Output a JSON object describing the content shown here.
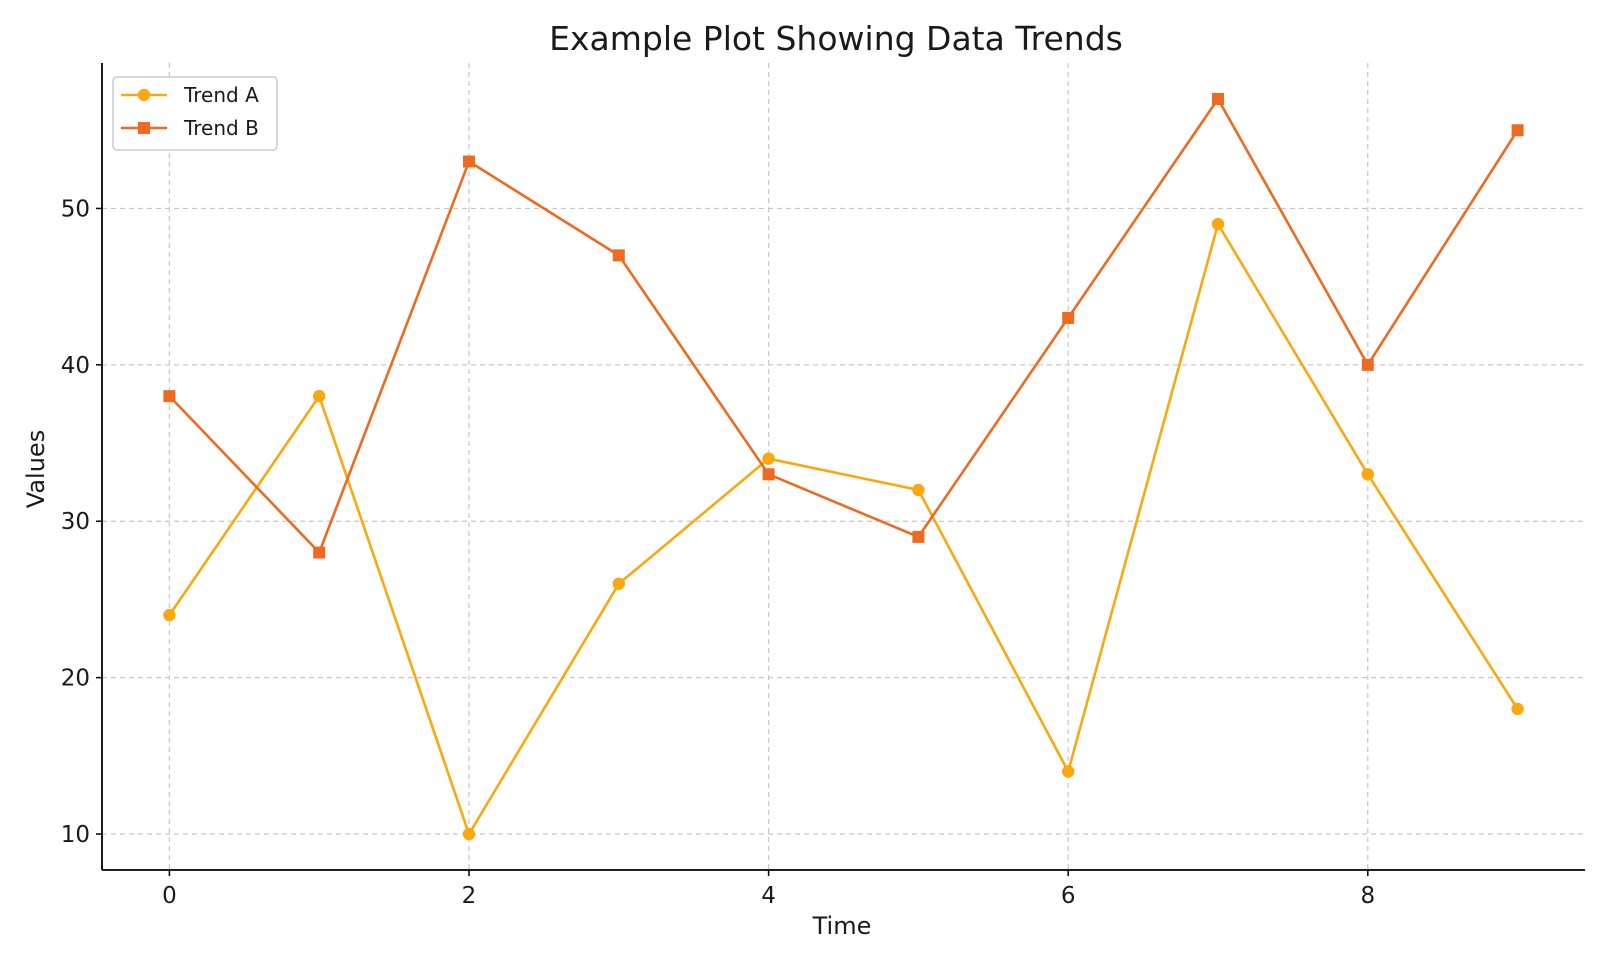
{
  "chart_data": {
    "type": "line",
    "title": "Example Plot Showing Data Trends",
    "xlabel": "Time",
    "ylabel": "Values",
    "x": [
      0,
      1,
      2,
      3,
      4,
      5,
      6,
      7,
      8,
      9
    ],
    "xlim": [
      -0.45,
      9.45
    ],
    "ylim": [
      7.7,
      59.3
    ],
    "xticks": [
      0,
      2,
      4,
      6,
      8
    ],
    "yticks": [
      10,
      20,
      30,
      40,
      50
    ],
    "grid": true,
    "legend_position": "top-left",
    "series": [
      {
        "name": "Trend A",
        "color": "#F9A810",
        "marker": "circle",
        "values": [
          24,
          38,
          10,
          26,
          34,
          32,
          14,
          49,
          33,
          18
        ]
      },
      {
        "name": "Trend B",
        "color": "#EE6A21",
        "marker": "square",
        "values": [
          38,
          28,
          53,
          47,
          33,
          29,
          43,
          57,
          40,
          55
        ]
      }
    ]
  }
}
